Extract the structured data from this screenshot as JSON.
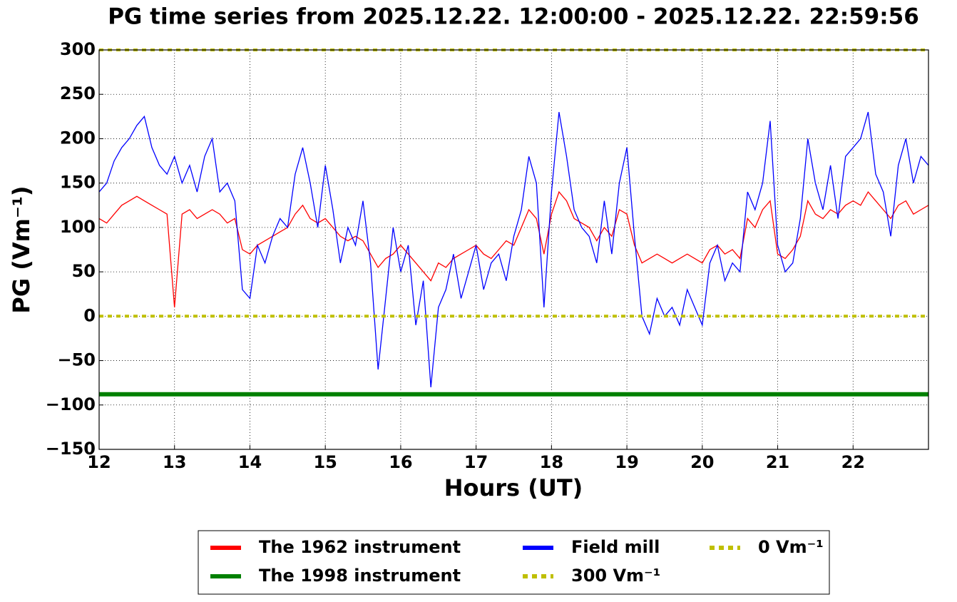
{
  "chart_data": {
    "type": "line",
    "title": "PG time series from 2025.12.22. 12:00:00 - 2025.12.22. 22:59:56",
    "x_label": "Hours (UT)",
    "y_label": "PG (Vm⁻¹)",
    "xlim": [
      12,
      23
    ],
    "ylim": [
      -150,
      300
    ],
    "xticks": [
      12,
      13,
      14,
      15,
      16,
      17,
      18,
      19,
      20,
      21,
      22
    ],
    "yticks": [
      {
        "value": -150,
        "label": "−150"
      },
      {
        "value": -100,
        "label": "−100"
      },
      {
        "value": -50,
        "label": "−50"
      },
      0,
      50,
      100,
      150,
      200,
      250,
      300
    ],
    "grid": true,
    "legend": {
      "loc": "lower center",
      "ncol": 3
    },
    "x": [
      12,
      12.1,
      12.2,
      12.3,
      12.4,
      12.5,
      12.6,
      12.7,
      12.8,
      12.9,
      13,
      13.1,
      13.2,
      13.3,
      13.4,
      13.5,
      13.6,
      13.7,
      13.8,
      13.9,
      14,
      14.1,
      14.2,
      14.3,
      14.4,
      14.5,
      14.6,
      14.7,
      14.8,
      14.9,
      15,
      15.1,
      15.2,
      15.3,
      15.4,
      15.5,
      15.6,
      15.7,
      15.8,
      15.9,
      16,
      16.1,
      16.2,
      16.3,
      16.4,
      16.5,
      16.6,
      16.7,
      16.8,
      16.9,
      17,
      17.1,
      17.2,
      17.3,
      17.4,
      17.5,
      17.6,
      17.7,
      17.8,
      17.9,
      18,
      18.1,
      18.2,
      18.3,
      18.4,
      18.5,
      18.6,
      18.7,
      18.8,
      18.9,
      19,
      19.1,
      19.2,
      19.3,
      19.4,
      19.5,
      19.6,
      19.7,
      19.8,
      19.9,
      20,
      20.1,
      20.2,
      20.3,
      20.4,
      20.5,
      20.6,
      20.7,
      20.8,
      20.9,
      21,
      21.1,
      21.2,
      21.3,
      21.4,
      21.5,
      21.6,
      21.7,
      21.8,
      21.9,
      22,
      22.1,
      22.2,
      22.3,
      22.4,
      22.5,
      22.6,
      22.7,
      22.8,
      22.9,
      23
    ],
    "series": [
      {
        "name": "The 1962 instrument",
        "color": "#ff0000",
        "linestyle": "solid",
        "values": [
          110,
          105,
          115,
          125,
          130,
          135,
          130,
          125,
          120,
          115,
          10,
          115,
          120,
          110,
          115,
          120,
          115,
          105,
          110,
          75,
          70,
          80,
          85,
          90,
          95,
          100,
          115,
          125,
          110,
          105,
          110,
          100,
          90,
          85,
          90,
          85,
          70,
          55,
          65,
          70,
          80,
          70,
          60,
          50,
          40,
          60,
          55,
          65,
          70,
          75,
          80,
          70,
          65,
          75,
          85,
          80,
          100,
          120,
          110,
          70,
          115,
          140,
          130,
          110,
          105,
          100,
          85,
          100,
          90,
          120,
          115,
          80,
          60,
          65,
          70,
          65,
          60,
          65,
          70,
          65,
          60,
          75,
          80,
          70,
          75,
          65,
          110,
          100,
          120,
          130,
          70,
          65,
          75,
          90,
          130,
          115,
          110,
          120,
          115,
          125,
          130,
          125,
          140,
          130,
          120,
          110,
          125,
          130,
          115,
          120,
          125
        ]
      },
      {
        "name": "The 1998 instrument",
        "color": "#008000",
        "linestyle": "thick",
        "x": [
          12,
          23
        ],
        "values": [
          -88,
          -88
        ]
      },
      {
        "name": "Field mill",
        "color": "#0000ff",
        "linestyle": "solid",
        "values": [
          140,
          150,
          175,
          190,
          200,
          215,
          225,
          190,
          170,
          160,
          180,
          150,
          170,
          140,
          180,
          200,
          140,
          150,
          130,
          30,
          20,
          80,
          60,
          90,
          110,
          100,
          160,
          190,
          150,
          100,
          170,
          120,
          60,
          100,
          80,
          130,
          60,
          -60,
          20,
          100,
          50,
          80,
          -10,
          40,
          -80,
          10,
          30,
          70,
          20,
          50,
          80,
          30,
          60,
          70,
          40,
          90,
          120,
          180,
          150,
          10,
          140,
          230,
          180,
          120,
          100,
          90,
          60,
          130,
          70,
          150,
          190,
          90,
          0,
          -20,
          20,
          0,
          10,
          -10,
          30,
          10,
          -10,
          60,
          80,
          40,
          60,
          50,
          140,
          120,
          150,
          220,
          80,
          50,
          60,
          110,
          200,
          150,
          120,
          170,
          110,
          180,
          190,
          200,
          230,
          160,
          140,
          90,
          170,
          200,
          150,
          180,
          170
        ]
      },
      {
        "name": "300 Vm⁻¹",
        "color": "#bfbf00",
        "linestyle": "dashed",
        "x": [
          12,
          23
        ],
        "values": [
          300,
          300
        ]
      },
      {
        "name": "0 Vm⁻¹",
        "color": "#bfbf00",
        "linestyle": "dashed",
        "x": [
          12,
          23
        ],
        "values": [
          0,
          0
        ]
      }
    ]
  }
}
